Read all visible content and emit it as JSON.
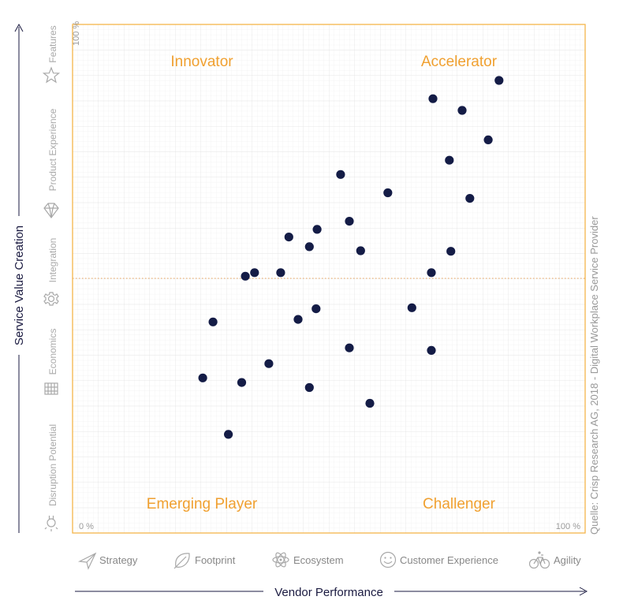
{
  "chart_data": {
    "type": "scatter",
    "xlabel": "Vendor Performance",
    "ylabel": "Service Value Creation",
    "xlim": [
      0,
      100
    ],
    "ylim": [
      0,
      100
    ],
    "grid": true,
    "x_min_label": "0 %",
    "x_max_label": "100 %",
    "y_max_label": "100 %",
    "quadrants": {
      "top_left": "Innovator",
      "top_right": "Accelerator",
      "bottom_left": "Emerging Player",
      "bottom_right": "Challenger"
    },
    "x_categories": [
      "Strategy",
      "Footprint",
      "Ecosystem",
      "Customer Experience",
      "Agility"
    ],
    "y_categories": [
      "Disruption Potential",
      "Economics",
      "Integration",
      "Product Experience",
      "Features"
    ],
    "points": [
      {
        "x": 83.2,
        "y": 89.0
      },
      {
        "x": 70.3,
        "y": 85.4
      },
      {
        "x": 76.0,
        "y": 83.1
      },
      {
        "x": 81.1,
        "y": 77.3
      },
      {
        "x": 73.5,
        "y": 73.3
      },
      {
        "x": 52.3,
        "y": 70.5
      },
      {
        "x": 61.5,
        "y": 66.9
      },
      {
        "x": 77.5,
        "y": 65.8
      },
      {
        "x": 54.0,
        "y": 61.3
      },
      {
        "x": 47.7,
        "y": 59.7
      },
      {
        "x": 42.2,
        "y": 58.2
      },
      {
        "x": 46.2,
        "y": 56.3
      },
      {
        "x": 56.2,
        "y": 55.5
      },
      {
        "x": 73.8,
        "y": 55.4
      },
      {
        "x": 70.0,
        "y": 51.2
      },
      {
        "x": 40.6,
        "y": 51.2
      },
      {
        "x": 35.5,
        "y": 51.2
      },
      {
        "x": 33.7,
        "y": 50.5
      },
      {
        "x": 66.2,
        "y": 44.3
      },
      {
        "x": 47.5,
        "y": 44.1
      },
      {
        "x": 44.0,
        "y": 42.0
      },
      {
        "x": 27.4,
        "y": 41.5
      },
      {
        "x": 54.0,
        "y": 36.4
      },
      {
        "x": 70.0,
        "y": 35.9
      },
      {
        "x": 38.3,
        "y": 33.3
      },
      {
        "x": 25.4,
        "y": 30.5
      },
      {
        "x": 33.0,
        "y": 29.6
      },
      {
        "x": 46.2,
        "y": 28.6
      },
      {
        "x": 58.0,
        "y": 25.5
      },
      {
        "x": 30.4,
        "y": 19.4
      }
    ],
    "point_color": "#141c46",
    "frame_color": "#f5b54a"
  },
  "source": "Quelle: Crisp Research AG, 2018 - Digital Workplace Service Provider"
}
